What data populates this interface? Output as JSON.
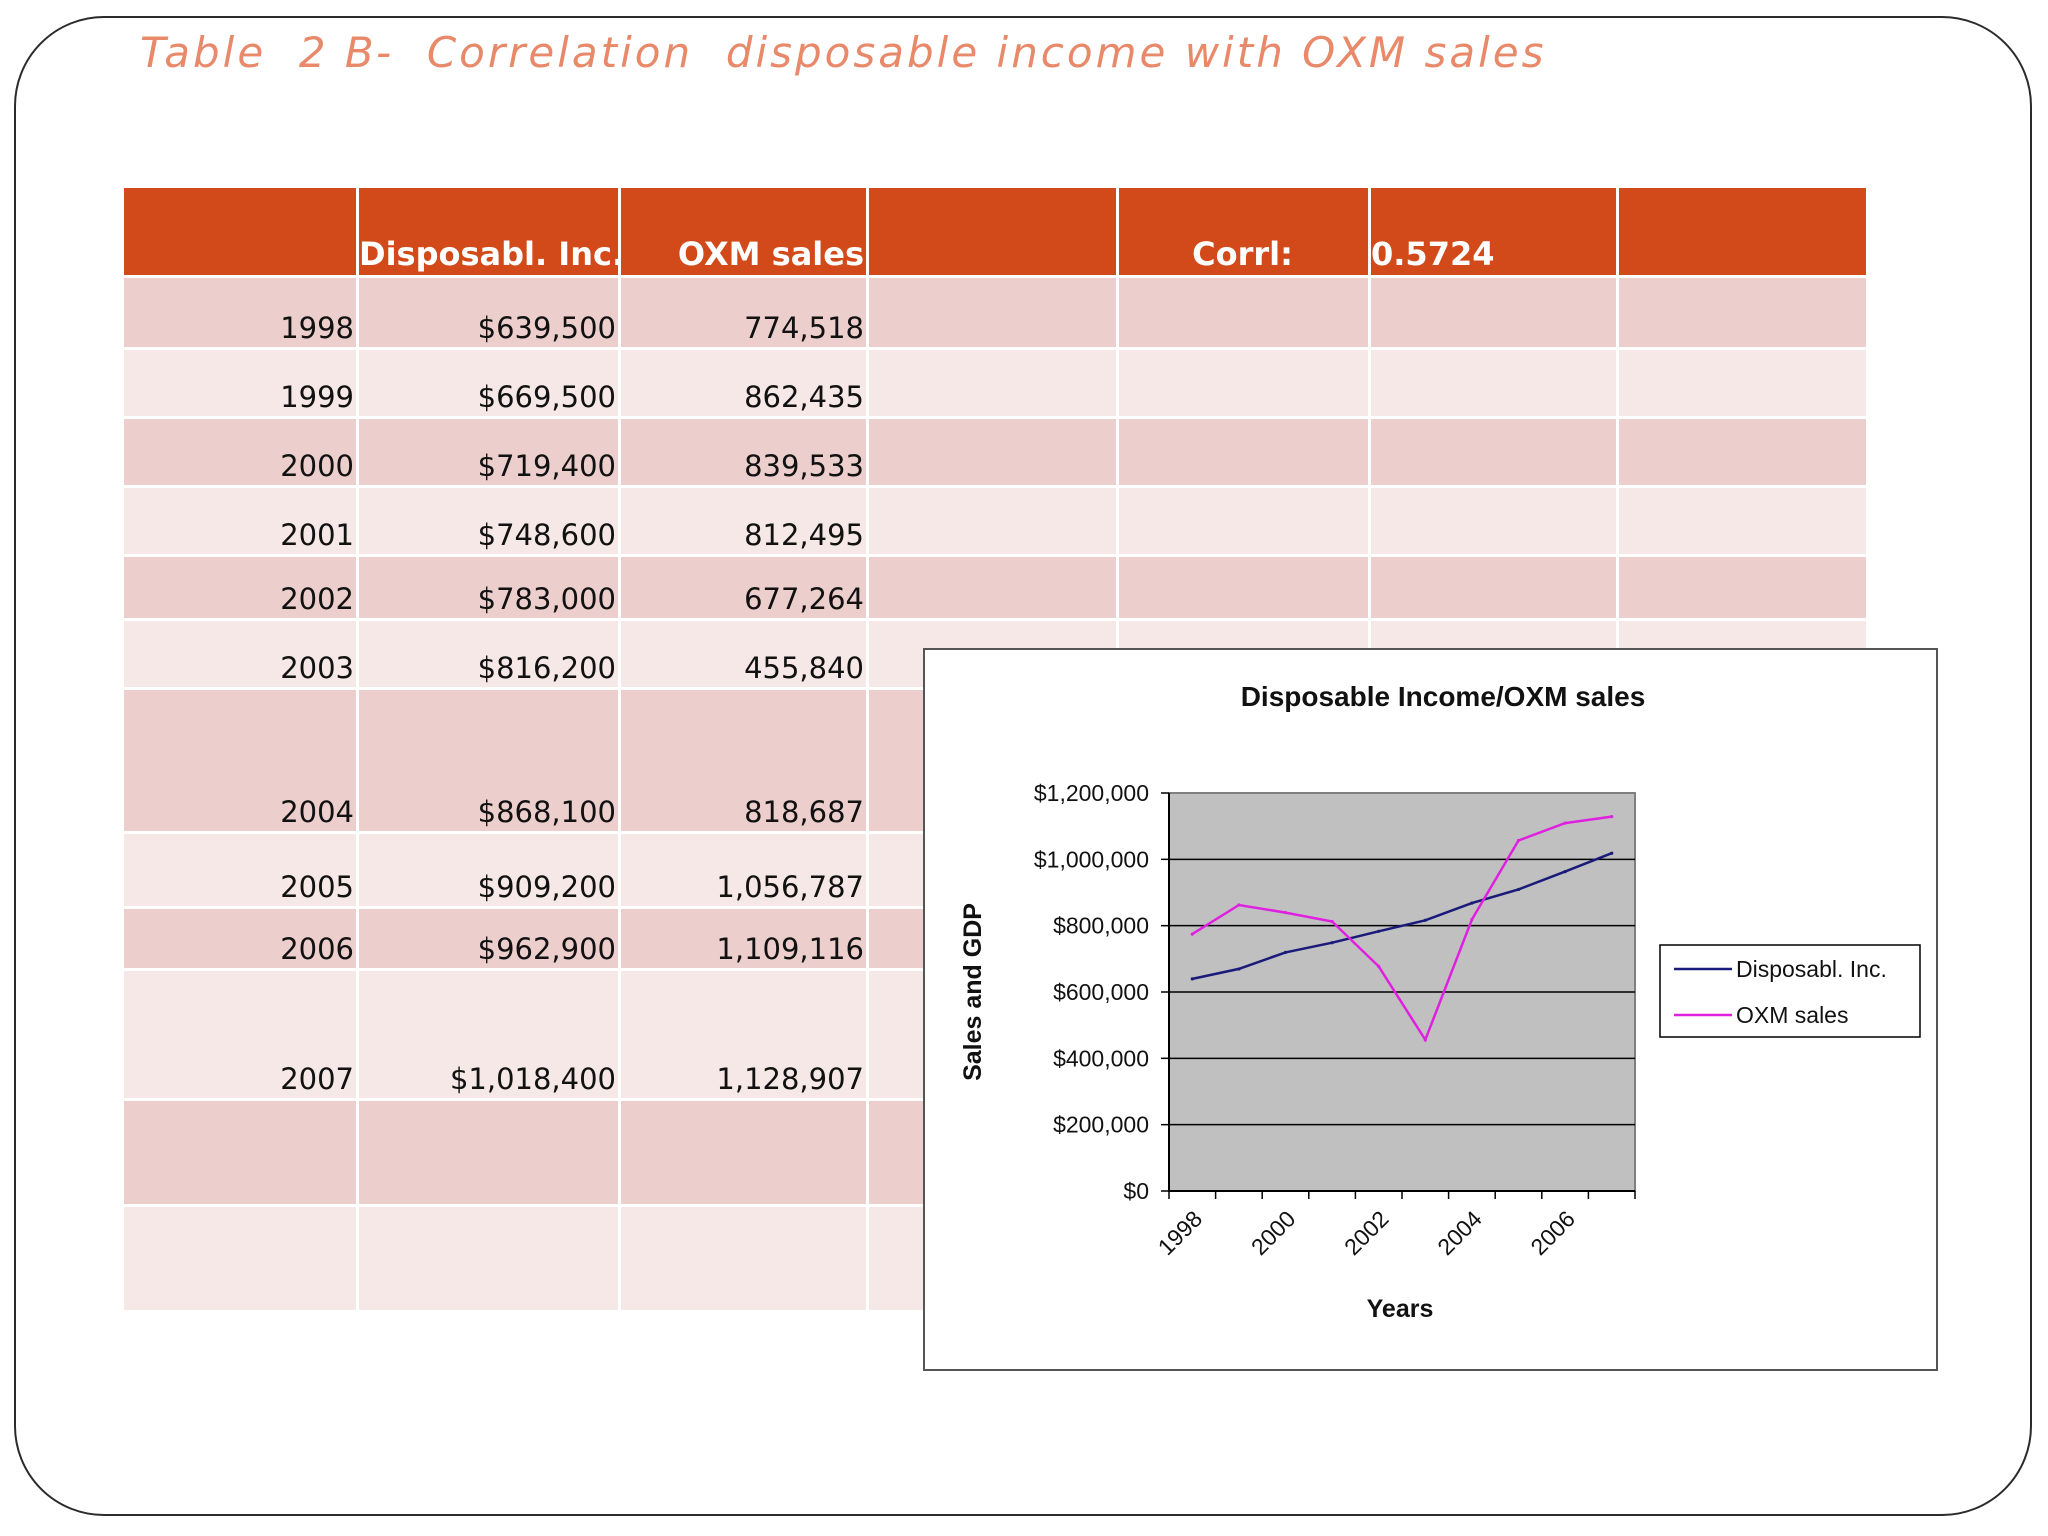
{
  "slide": {
    "title": "Table  2 B-  Correlation  disposable income with OXM sales"
  },
  "table": {
    "headers": [
      "",
      "Disposabl. Inc.",
      "OXM sales",
      "",
      "Corrl:",
      "0.5724",
      ""
    ],
    "rows": [
      [
        "1998",
        "$639,500",
        "774,518"
      ],
      [
        "1999",
        "$669,500",
        "862,435"
      ],
      [
        "2000",
        "$719,400",
        "839,533"
      ],
      [
        "2001",
        "$748,600",
        "812,495"
      ],
      [
        "2002",
        "$783,000",
        "677,264"
      ],
      [
        "2003",
        "$816,200",
        "455,840"
      ],
      [
        "2004",
        "$868,100",
        "818,687"
      ],
      [
        "2005",
        "$909,200",
        "1,056,787"
      ],
      [
        "2006",
        "$962,900",
        "1,109,116"
      ],
      [
        "2007",
        "$1,018,400",
        "1,128,907"
      ],
      [
        "",
        "",
        ""
      ],
      [
        "",
        "",
        ""
      ]
    ]
  },
  "chart_data": {
    "type": "line",
    "title": "Disposable Income/OXM sales",
    "xlabel": "Years",
    "ylabel": "Sales and GDP",
    "x": [
      1998,
      1999,
      2000,
      2001,
      2002,
      2003,
      2004,
      2005,
      2006,
      2007
    ],
    "x_tick_labels": [
      "1998",
      "2000",
      "2002",
      "2004",
      "2006"
    ],
    "ylim": [
      0,
      1200000
    ],
    "y_tick_labels": [
      "$0",
      "$200,000",
      "$400,000",
      "$600,000",
      "$800,000",
      "$1,000,000",
      "$1,200,000"
    ],
    "grid": true,
    "legend_position": "right",
    "plot_background": "#c0c0c0",
    "series": [
      {
        "name": "Disposabl. Inc.",
        "color": "#1a1a7a",
        "values": [
          639500,
          669500,
          719400,
          748600,
          783000,
          816200,
          868100,
          909200,
          962900,
          1018400
        ]
      },
      {
        "name": "OXM sales",
        "color": "#e020e0",
        "values": [
          774518,
          862435,
          839533,
          812495,
          677264,
          455840,
          818687,
          1056787,
          1109116,
          1128907
        ]
      }
    ]
  }
}
